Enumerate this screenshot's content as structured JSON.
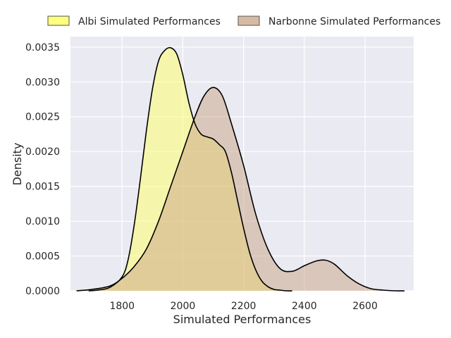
{
  "chart_data": {
    "type": "area",
    "xlabel": "Simulated Performances",
    "ylabel": "Density",
    "xlim": [
      1630,
      2760
    ],
    "ylim": [
      0,
      0.00365
    ],
    "xticks": [
      1800,
      2000,
      2200,
      2400,
      2600
    ],
    "yticks": [
      0.0,
      0.0005,
      0.001,
      0.0015,
      0.002,
      0.0025,
      0.003,
      0.0035
    ],
    "ytick_labels": [
      "0.0000",
      "0.0005",
      "0.0010",
      "0.0015",
      "0.0020",
      "0.0025",
      "0.0030",
      "0.0035"
    ],
    "grid": true,
    "legend_position": "top",
    "series": [
      {
        "name": "Albi Simulated Performances",
        "color": "#ffff66",
        "x": [
          1690,
          1720,
          1760,
          1800,
          1820,
          1840,
          1860,
          1880,
          1900,
          1920,
          1940,
          1960,
          1980,
          2000,
          2020,
          2040,
          2060,
          2080,
          2100,
          2120,
          2140,
          2160,
          2180,
          2200,
          2220,
          2240,
          2260,
          2280,
          2300,
          2320,
          2340,
          2360
        ],
        "y": [
          0.0,
          1e-05,
          5e-05,
          0.0002,
          0.00045,
          0.00095,
          0.0016,
          0.0023,
          0.0029,
          0.0033,
          0.00345,
          0.00349,
          0.0034,
          0.0031,
          0.0027,
          0.0024,
          0.00225,
          0.00221,
          0.00218,
          0.0021,
          0.002,
          0.0017,
          0.0013,
          0.0009,
          0.00055,
          0.0003,
          0.00014,
          6e-05,
          2e-05,
          1e-05,
          0.0,
          0.0
        ]
      },
      {
        "name": "Narbonne Simulated Performances",
        "color": "#c9a385",
        "x": [
          1650,
          1700,
          1760,
          1800,
          1840,
          1880,
          1920,
          1960,
          2000,
          2040,
          2070,
          2100,
          2130,
          2160,
          2200,
          2240,
          2280,
          2320,
          2360,
          2400,
          2440,
          2470,
          2500,
          2540,
          2580,
          2620,
          2660,
          2700,
          2730
        ],
        "y": [
          0.0,
          2e-05,
          7e-05,
          0.00018,
          0.00035,
          0.0006,
          0.001,
          0.0015,
          0.002,
          0.0025,
          0.0028,
          0.00292,
          0.0028,
          0.0024,
          0.0018,
          0.0011,
          0.0006,
          0.00032,
          0.00028,
          0.00036,
          0.00043,
          0.00044,
          0.00038,
          0.00022,
          0.0001,
          3e-05,
          1e-05,
          0.0,
          0.0
        ]
      }
    ]
  }
}
